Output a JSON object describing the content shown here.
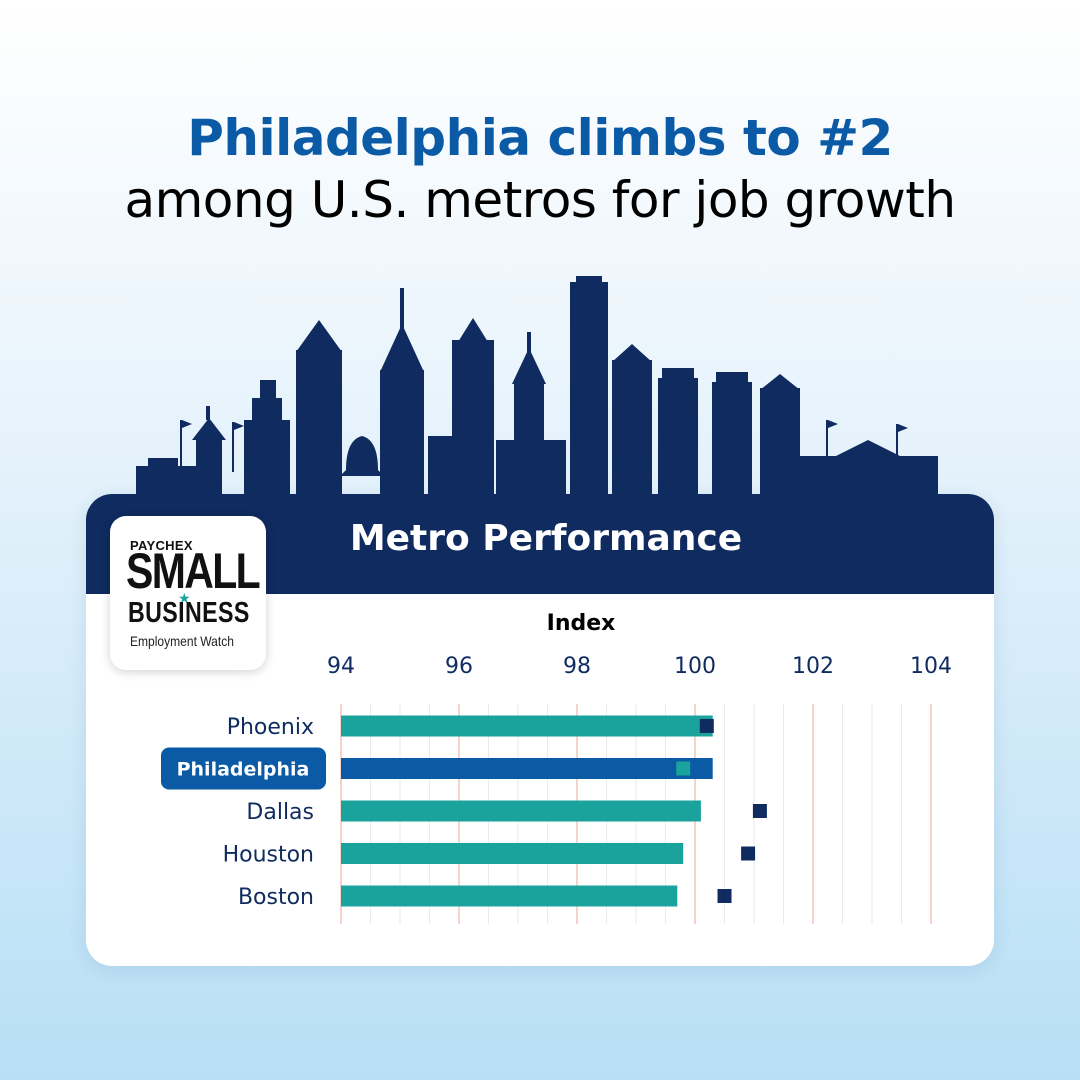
{
  "headline": {
    "line1": "Philadelphia climbs to #2",
    "line2": "among U.S. metros for job growth"
  },
  "card": {
    "title": "Metro Performance"
  },
  "logo": {
    "brand": "PAYCHEX",
    "line1": "SMALL",
    "line2": "BUSINESS",
    "line3": "Employment Watch"
  },
  "colors": {
    "brand_blue": "#0b5aa5",
    "navy": "#0f2b5f",
    "teal": "#1aa39c",
    "highlight_bar": "#0b5aa5",
    "marker": "#0f2b5f",
    "highlight_marker": "#1aa39c"
  },
  "chart_data": {
    "type": "bar",
    "orientation": "horizontal",
    "xlabel": "Index",
    "xlim": [
      94,
      104
    ],
    "xticks": [
      "94",
      "96",
      "98",
      "100",
      "102",
      "104"
    ],
    "categories": [
      "Phoenix",
      "Philadelphia",
      "Dallas",
      "Houston",
      "Boston"
    ],
    "highlight": "Philadelphia",
    "series": [
      {
        "type": "bar",
        "values": [
          100.3,
          100.3,
          100.1,
          99.8,
          99.7
        ]
      },
      {
        "type": "marker",
        "values": [
          100.2,
          99.8,
          101.1,
          100.9,
          100.5
        ]
      }
    ],
    "grid": true
  }
}
